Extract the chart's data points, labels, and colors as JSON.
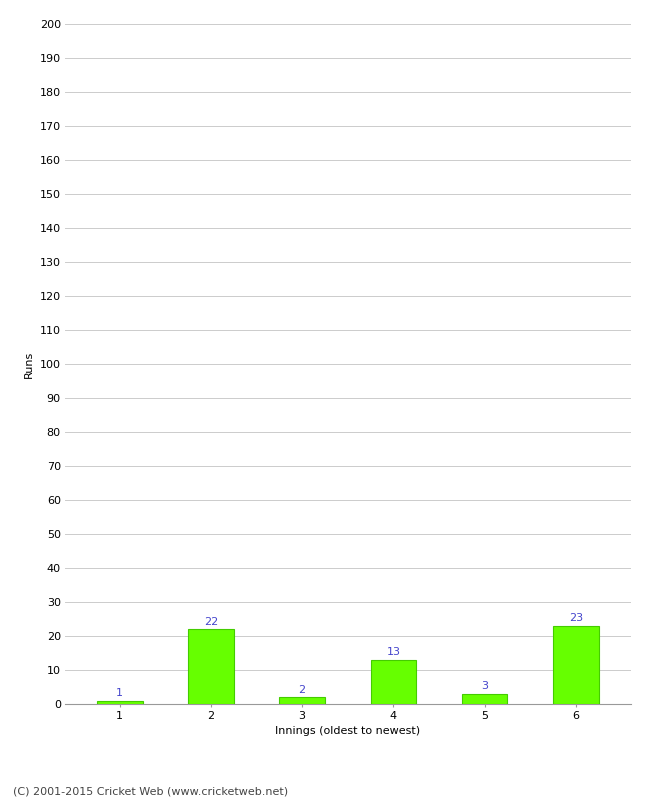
{
  "categories": [
    "1",
    "2",
    "3",
    "4",
    "5",
    "6"
  ],
  "values": [
    1,
    22,
    2,
    13,
    3,
    23
  ],
  "bar_color": "#66ff00",
  "bar_edge_color": "#44cc00",
  "label_color": "#4444cc",
  "xlabel": "Innings (oldest to newest)",
  "ylabel": "Runs",
  "ylim": [
    0,
    200
  ],
  "yticks": [
    0,
    10,
    20,
    30,
    40,
    50,
    60,
    70,
    80,
    90,
    100,
    110,
    120,
    130,
    140,
    150,
    160,
    170,
    180,
    190,
    200
  ],
  "footer": "(C) 2001-2015 Cricket Web (www.cricketweb.net)",
  "background_color": "#ffffff",
  "grid_color": "#cccccc",
  "label_fontsize": 8,
  "axis_fontsize": 8,
  "footer_fontsize": 8,
  "ylabel_fontsize": 8,
  "xlabel_fontsize": 8
}
